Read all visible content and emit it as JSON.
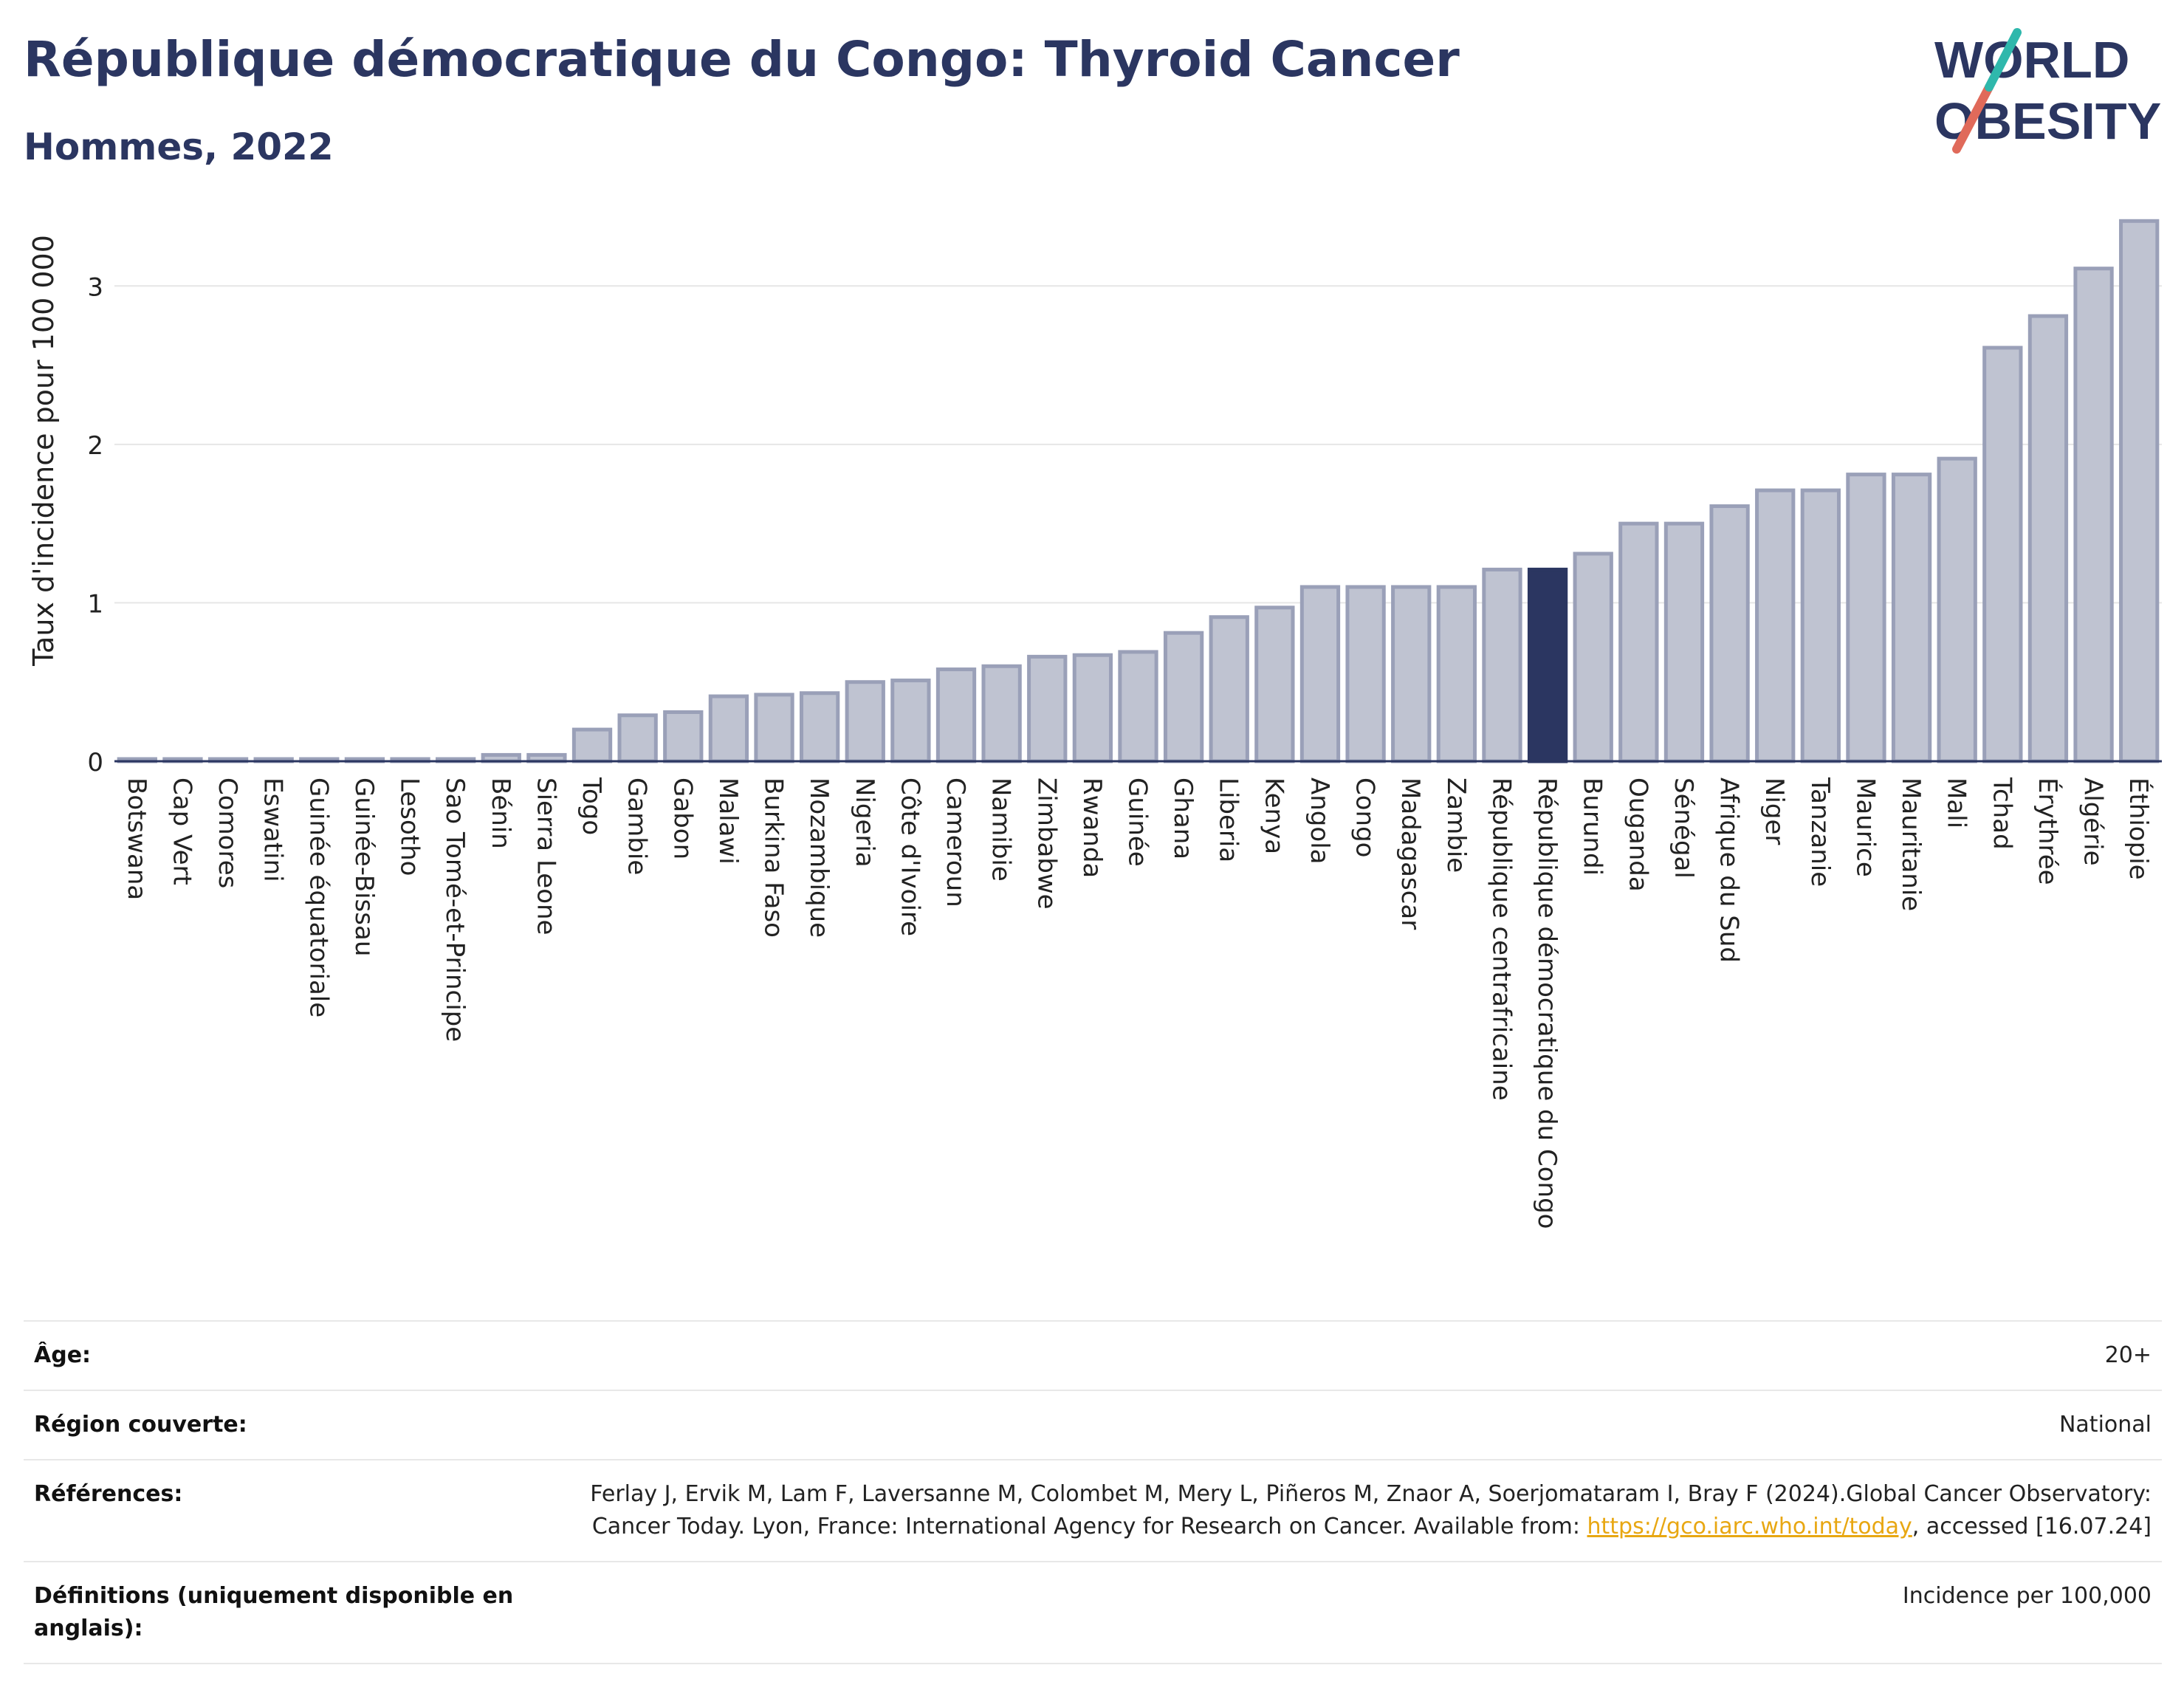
{
  "header": {
    "title": "République démocratique du Congo: Thyroid Cancer",
    "subtitle": "Hommes, 2022"
  },
  "logo": {
    "line1": "WORLD",
    "line2": "OBESITY"
  },
  "colors": {
    "bar": "#bfc3d1",
    "bar_stroke": "#9aa0b8",
    "highlight": "#2b3661",
    "title": "#2b3661",
    "link": "#e8a712"
  },
  "chart_data": {
    "type": "bar",
    "ylabel": "Taux d'incidence pour 100 000",
    "ylim": [
      0,
      3.5
    ],
    "yticks": [
      0,
      1,
      2,
      3
    ],
    "grid": true,
    "highlight": "République démocratique du Congo",
    "categories": [
      "Botswana",
      "Cap Vert",
      "Comores",
      "Eswatini",
      "Guinée équatoriale",
      "Guinée-Bissau",
      "Lesotho",
      "Sao Tomé-et-Principe",
      "Bénin",
      "Sierra Leone",
      "Togo",
      "Gambie",
      "Gabon",
      "Malawi",
      "Burkina Faso",
      "Mozambique",
      "Nigeria",
      "Côte d'Ivoire",
      "Cameroun",
      "Namibie",
      "Zimbabwe",
      "Rwanda",
      "Guinée",
      "Ghana",
      "Liberia",
      "Kenya",
      "Angola",
      "Congo",
      "Madagascar",
      "Zambie",
      "République centrafricaine",
      "République démocratique du Congo",
      "Burundi",
      "Ouganda",
      "Sénégal",
      "Afrique du Sud",
      "Niger",
      "Tanzanie",
      "Maurice",
      "Mauritanie",
      "Mali",
      "Tchad",
      "Érythrée",
      "Algérie",
      "Éthiopie"
    ],
    "values": [
      0.01,
      0.01,
      0.01,
      0.01,
      0.01,
      0.01,
      0.01,
      0.01,
      0.04,
      0.04,
      0.2,
      0.29,
      0.31,
      0.41,
      0.42,
      0.43,
      0.5,
      0.51,
      0.58,
      0.6,
      0.66,
      0.67,
      0.69,
      0.81,
      0.91,
      0.97,
      1.1,
      1.1,
      1.1,
      1.1,
      1.21,
      1.21,
      1.31,
      1.5,
      1.5,
      1.61,
      1.71,
      1.71,
      1.81,
      1.81,
      1.91,
      2.61,
      2.81,
      3.11,
      3.41
    ]
  },
  "meta": {
    "age_label": "Âge:",
    "age_value": "20+",
    "region_label": "Région couverte:",
    "region_value": "National",
    "ref_label": "Références:",
    "ref_text": "Ferlay J, Ervik M, Lam F, Laversanne M, Colombet M, Mery L, Piñeros M, Znaor A, Soerjomataram I, Bray F (2024).Global Cancer Observatory: Cancer Today. Lyon, France: International Agency for Research on Cancer. Available from:",
    "ref_link": "https://gco.iarc.who.int/today",
    "ref_suffix": ", accessed [16.07.24]",
    "def_label": "Définitions (uniquement disponible en anglais):",
    "def_value": "Incidence per 100,000"
  }
}
